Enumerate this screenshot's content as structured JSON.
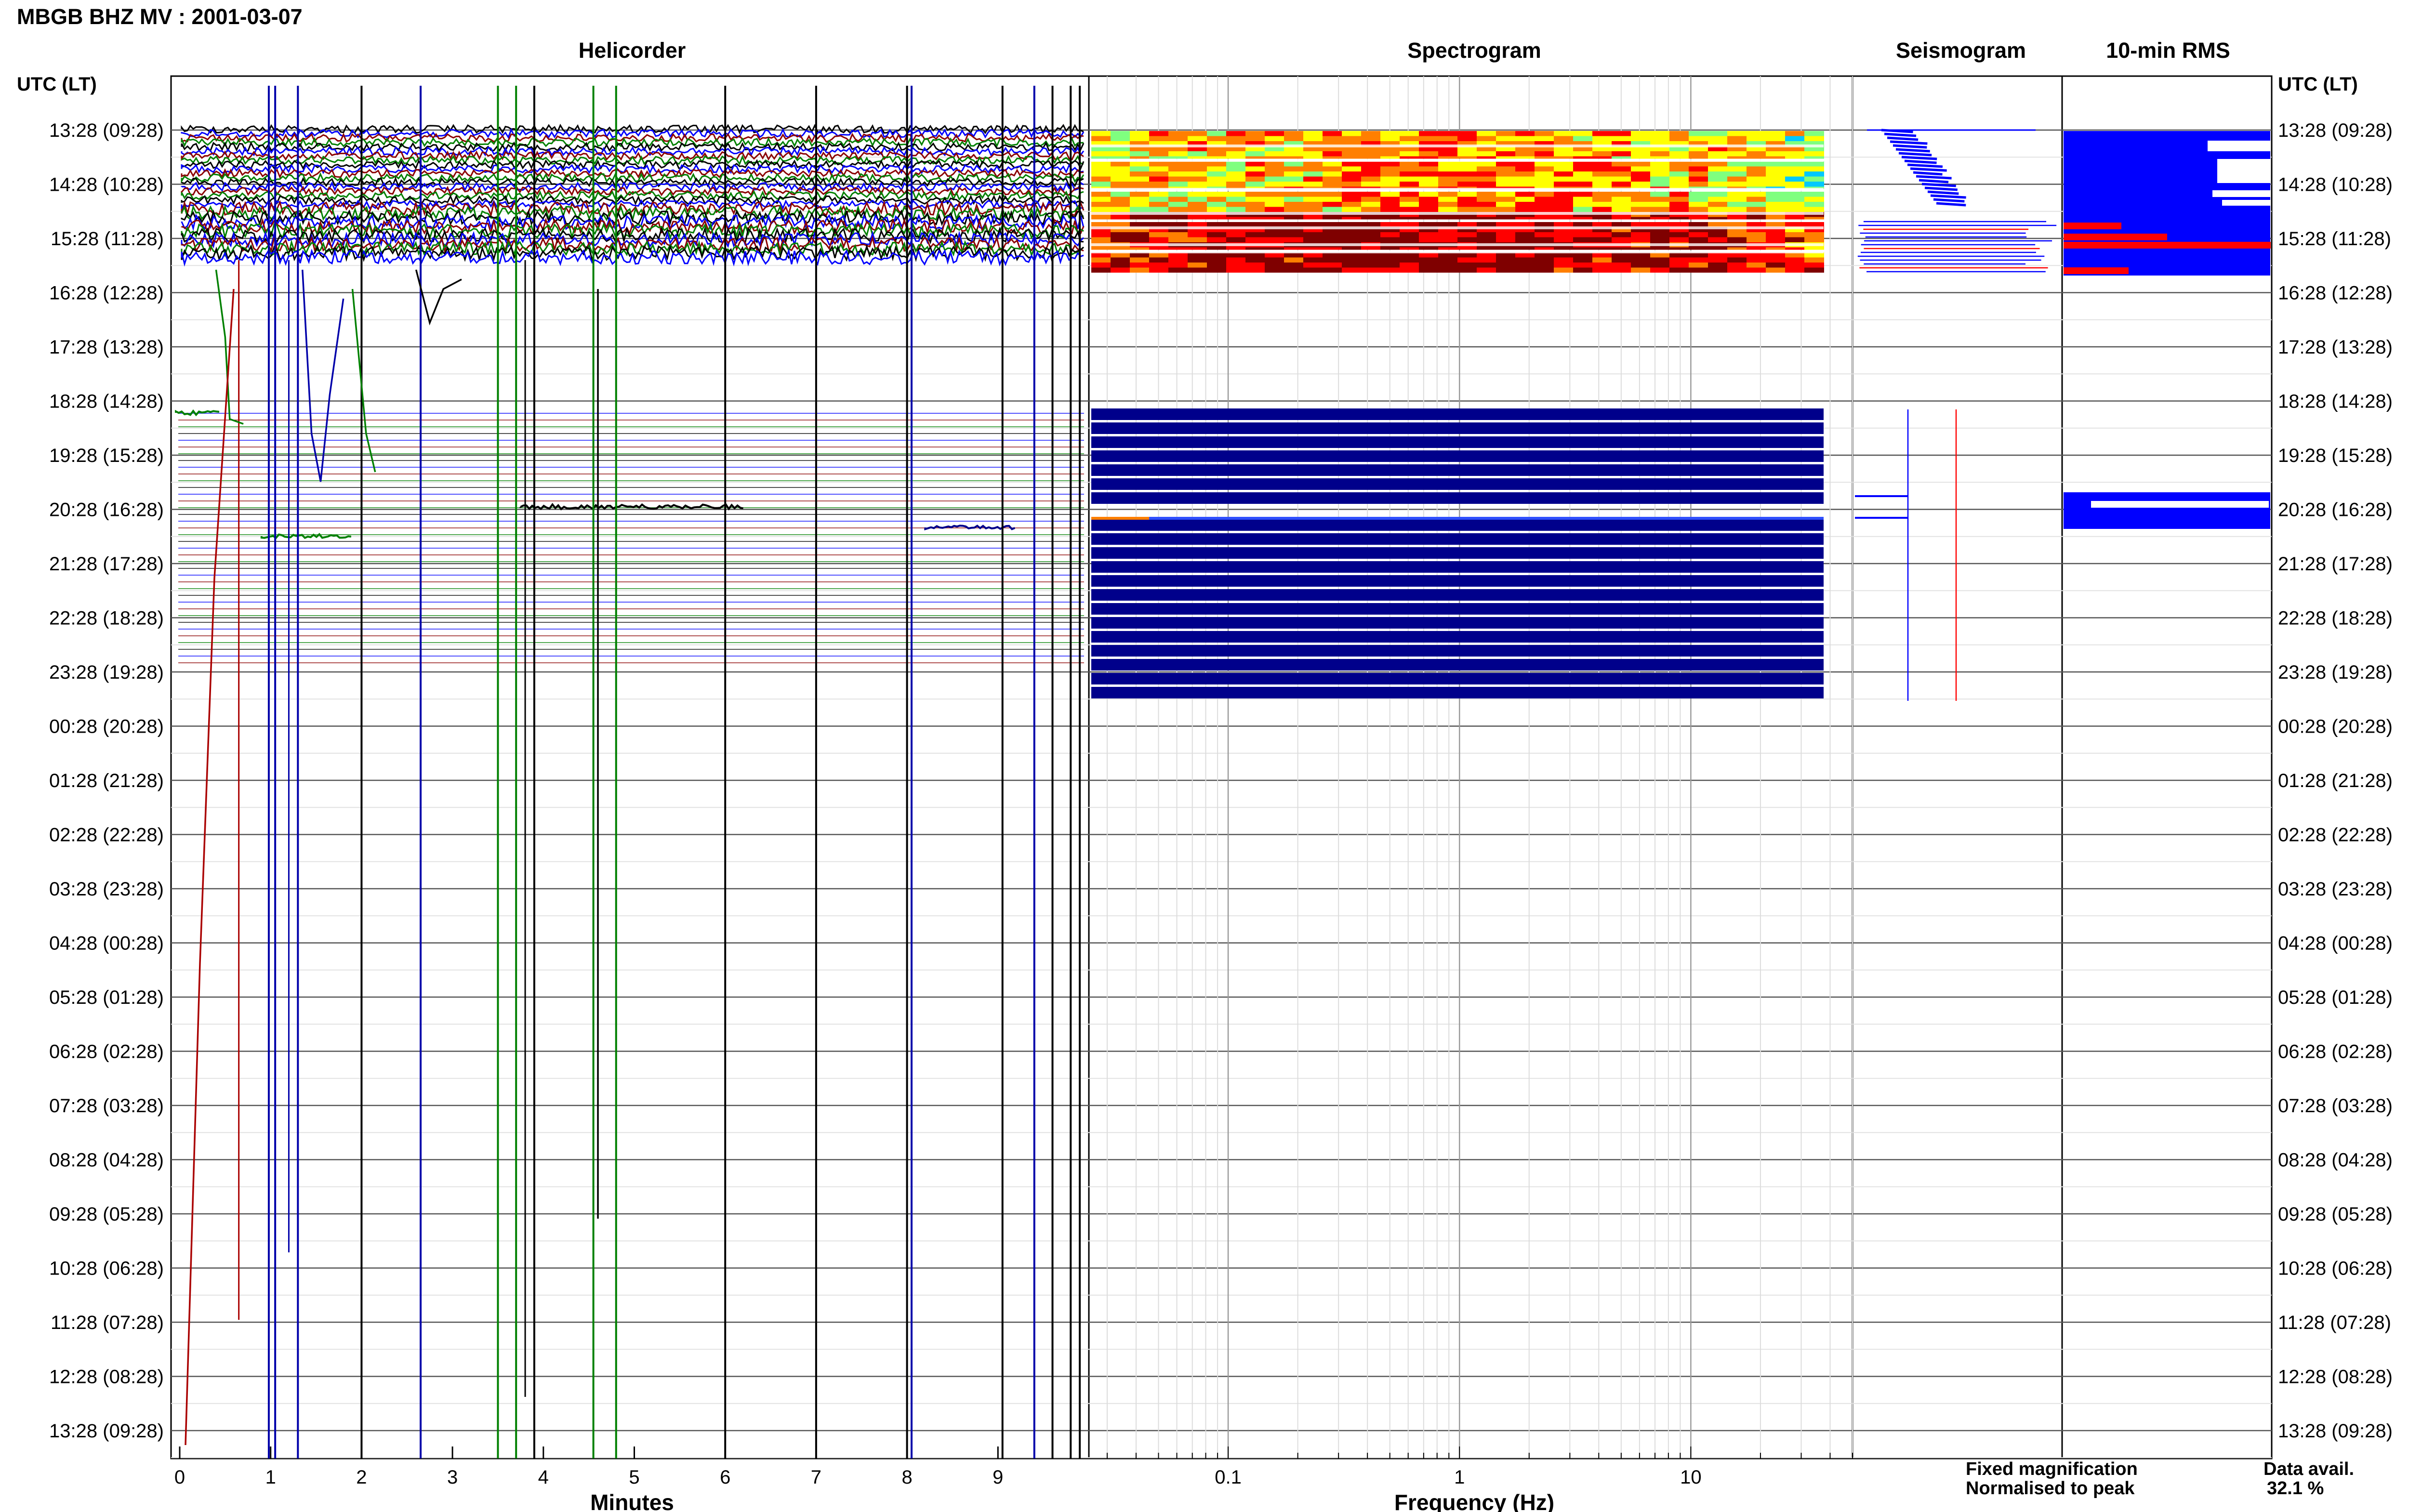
{
  "title": "MBGB BHZ MV : 2001-03-07",
  "panels": {
    "helicorder": "Helicorder",
    "spectrogram": "Spectrogram",
    "seismogram": "Seismogram",
    "rms": "10-min RMS"
  },
  "axis_header_left": "UTC (LT)",
  "axis_header_right": "UTC (LT)",
  "time_labels": [
    "13:28 (09:28)",
    "14:28 (10:28)",
    "15:28 (11:28)",
    "16:28 (12:28)",
    "17:28 (13:28)",
    "18:28 (14:28)",
    "19:28 (15:28)",
    "20:28 (16:28)",
    "21:28 (17:28)",
    "22:28 (18:28)",
    "23:28 (19:28)",
    "00:28 (20:28)",
    "01:28 (21:28)",
    "02:28 (22:28)",
    "03:28 (23:28)",
    "04:28 (00:28)",
    "05:28 (01:28)",
    "06:28 (02:28)",
    "07:28 (03:28)",
    "08:28 (04:28)",
    "09:28 (05:28)",
    "10:28 (06:28)",
    "11:28 (07:28)",
    "12:28 (08:28)",
    "13:28 (09:28)"
  ],
  "legend": {
    "fixed": "Fixed magnification",
    "normalised": "Normalised to peak",
    "fixed_color": "#0000ff",
    "normalised_color": "#ff0000"
  },
  "data_avail": {
    "label": "Data avail.",
    "value": "32.1 %"
  },
  "chart_data": [
    {
      "type": "line",
      "panel": "helicorder",
      "xlabel": "Minutes",
      "x_ticks": [
        "0",
        "1",
        "2",
        "3",
        "4",
        "5",
        "6",
        "7",
        "8",
        "9"
      ],
      "xlim": [
        0,
        10
      ],
      "trace_colors": [
        "#000000",
        "#0000ff",
        "#8b0000",
        "#008000"
      ]
    },
    {
      "type": "heatmap",
      "panel": "spectrogram",
      "xlabel": "Frequency (Hz)",
      "x_scale": "log",
      "x_ticks": [
        "0.1",
        "1",
        "10"
      ],
      "x_tick_values": [
        0.1,
        1,
        10
      ],
      "xlim": [
        0.025,
        50
      ],
      "grid": true,
      "colormap": [
        "#00007f",
        "#0000ff",
        "#00c8ff",
        "#7fff7f",
        "#ffff00",
        "#ff7f00",
        "#ff0000",
        "#7f0000"
      ]
    },
    {
      "type": "line",
      "panel": "seismogram",
      "series": [
        {
          "name": "Fixed magnification",
          "color": "#0000ff"
        },
        {
          "name": "Normalised to peak",
          "color": "#ff0000"
        }
      ]
    },
    {
      "type": "bar",
      "panel": "10-min RMS",
      "series": [
        {
          "name": "Fixed magnification",
          "color": "#0000ff"
        },
        {
          "name": "Normalised to peak",
          "color": "#ff0000"
        }
      ]
    }
  ]
}
